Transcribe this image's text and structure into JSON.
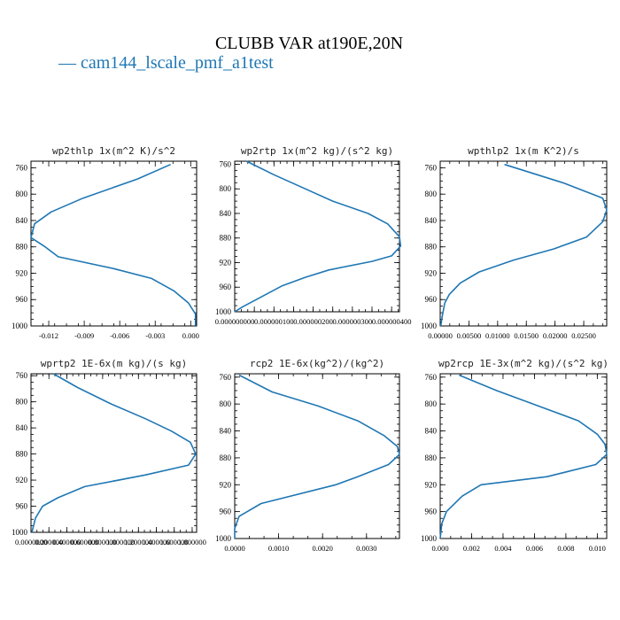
{
  "figure": {
    "title": "CLUBB VAR at190E,20N",
    "legend_label": "cam144_lscale_pmf_a1test",
    "legend_marker": "—",
    "line_color": "#1f77b4"
  },
  "chart_data": [
    {
      "type": "line",
      "title": "wp2thlp  1x(m^2 K)/s^2",
      "ylim": [
        1000,
        750
      ],
      "yticks": [
        760,
        800,
        840,
        880,
        920,
        960,
        1000
      ],
      "xlim": [
        -0.0135,
        0.0005
      ],
      "xticks": [
        -0.012,
        -0.009,
        -0.006,
        -0.003,
        0.0
      ],
      "xtick_labels": [
        "-0.012",
        "-0.009",
        "-0.006",
        "-0.003",
        "0.000"
      ],
      "x": [
        -0.0017,
        -0.0045,
        -0.0091,
        -0.0118,
        -0.0132,
        -0.0135,
        -0.0123,
        -0.0112,
        -0.0065,
        -0.0033,
        -0.0014,
        -0.0002,
        0.0004,
        0.0004
      ],
      "y": [
        755,
        777,
        806,
        827,
        845,
        866,
        880,
        895,
        913,
        928,
        947,
        965,
        982,
        1000
      ]
    },
    {
      "type": "line",
      "title": "wp2rtp  1x(m^2 kg)/(s^2 kg)",
      "ylim": [
        1000,
        755
      ],
      "yticks": [
        760,
        800,
        840,
        880,
        920,
        960,
        1000
      ],
      "xlim": [
        0.0,
        4.2e-07
      ],
      "xticks": [
        0.0,
        5e-08,
        1e-07,
        1.5e-07,
        2e-07,
        2.5e-07,
        3e-07,
        3.5e-07,
        4e-07
      ],
      "xtick_labels": [
        "0.000000000",
        "0.000000100",
        "0.000000200",
        "0.000000300",
        "0.000000400"
      ],
      "xtick_label_values": [
        0.0,
        1e-07,
        2e-07,
        3e-07,
        4e-07
      ],
      "x": [
        3e-08,
        1e-07,
        1.8e-07,
        2.5e-07,
        3.4e-07,
        3.9e-07,
        4.2e-07,
        4.23e-07,
        4e-07,
        3.5e-07,
        2.4e-07,
        1.8e-07,
        1.2e-07,
        7e-08,
        2e-08,
        0.0
      ],
      "y": [
        755,
        777,
        800,
        820,
        840,
        857,
        878,
        893,
        909,
        918,
        932,
        944,
        958,
        975,
        992,
        1000
      ]
    },
    {
      "type": "line",
      "title": "wpthlp2  1x(m K^2)/s",
      "ylim": [
        1000,
        750
      ],
      "yticks": [
        760,
        800,
        840,
        880,
        920,
        960,
        1000
      ],
      "xlim": [
        0.0,
        0.029
      ],
      "xticks": [
        0.0,
        0.005,
        0.01,
        0.015,
        0.02,
        0.025
      ],
      "xtick_labels": [
        "0.00000",
        "0.00500",
        "0.01000",
        "0.01500",
        "0.02000",
        "0.02500"
      ],
      "x": [
        0.0112,
        0.0215,
        0.0283,
        0.029,
        0.0283,
        0.0255,
        0.0198,
        0.0128,
        0.0068,
        0.0035,
        0.0016,
        0.0008,
        0.0004,
        0.0001
      ],
      "y": [
        755,
        783,
        806,
        824,
        842,
        865,
        883,
        900,
        918,
        935,
        952,
        965,
        983,
        1000
      ]
    },
    {
      "type": "line",
      "title": "wprtp2  1E-6x(m kg)/(s kg)",
      "ylim": [
        1000,
        757
      ],
      "yticks": [
        760,
        800,
        840,
        880,
        920,
        960,
        1000
      ],
      "xlim": [
        0.0,
        1.85
      ],
      "xticks": [
        0.0,
        0.2,
        0.4,
        0.6,
        0.8,
        1.0,
        1.2,
        1.4,
        1.6,
        1.8
      ],
      "xtick_labels": [
        "0.0000000",
        "0.200000",
        "0.400000",
        "0.600000",
        "0.800000",
        "1.000000",
        "1.200000",
        "1.400000",
        "1.600000",
        "1.800000"
      ],
      "x": [
        0.25,
        0.52,
        0.89,
        1.28,
        1.57,
        1.78,
        1.84,
        1.76,
        1.28,
        0.6,
        0.3,
        0.13,
        0.05,
        0.01
      ],
      "y": [
        757,
        778,
        803,
        826,
        845,
        862,
        880,
        897,
        912,
        930,
        947,
        960,
        978,
        1000
      ]
    },
    {
      "type": "line",
      "title": "rcp2  1E-6x(kg^2)/(kg^2)",
      "ylim": [
        1000,
        755
      ],
      "yticks": [
        760,
        800,
        840,
        880,
        920,
        960,
        1000
      ],
      "xlim": [
        0.0,
        0.00375
      ],
      "xticks": [
        0.0,
        0.001,
        0.002,
        0.003
      ],
      "xtick_labels": [
        "0.0000",
        "0.0010",
        "0.0020",
        "0.0030"
      ],
      "x": [
        0.0001,
        0.00085,
        0.0019,
        0.0028,
        0.0034,
        0.0037,
        0.00375,
        0.0035,
        0.0028,
        0.0023,
        0.0006,
        0.0001,
        0.0,
        0.0
      ],
      "y": [
        757,
        782,
        803,
        825,
        847,
        863,
        875,
        890,
        908,
        920,
        948,
        967,
        985,
        1000
      ]
    },
    {
      "type": "line",
      "title": "wp2rcp  1E-3x(m^2 kg)/(s^2 kg)",
      "ylim": [
        1000,
        755
      ],
      "yticks": [
        760,
        800,
        840,
        880,
        920,
        960,
        1000
      ],
      "xlim": [
        0.0,
        0.0106
      ],
      "xticks": [
        0.0,
        0.002,
        0.004,
        0.006,
        0.008,
        0.01
      ],
      "xtick_labels": [
        "0.000",
        "0.002",
        "0.004",
        "0.006",
        "0.008",
        "0.010"
      ],
      "x": [
        0.0012,
        0.0036,
        0.0065,
        0.0088,
        0.01,
        0.0105,
        0.0106,
        0.0099,
        0.0068,
        0.0026,
        0.0014,
        0.0004,
        0.0001,
        0.0
      ],
      "y": [
        757,
        780,
        805,
        825,
        845,
        860,
        875,
        890,
        908,
        920,
        937,
        960,
        978,
        1000
      ]
    }
  ]
}
